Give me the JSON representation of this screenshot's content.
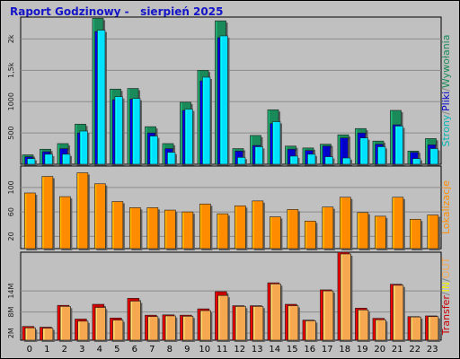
{
  "title": "Raport Godzinowy -   sierpień 2025",
  "chart_data": [
    {
      "type": "bar",
      "panel": "strony-pliki-wywolania",
      "legend": [
        {
          "label": "Strony",
          "color": "#00b4b4"
        },
        {
          "label": "Pliki",
          "color": "#0000c8"
        },
        {
          "label": "Wywołania",
          "color": "#1b8a5a"
        }
      ],
      "separator": "/",
      "yticks": [
        "500",
        "1000",
        "1,5k",
        "2k"
      ],
      "ytick_values": [
        500,
        1000,
        1500,
        2000
      ],
      "ylim": [
        0,
        2350
      ],
      "categories": [
        "0",
        "1",
        "2",
        "3",
        "4",
        "5",
        "6",
        "7",
        "8",
        "9",
        "10",
        "11",
        "12",
        "13",
        "14",
        "15",
        "16",
        "17",
        "18",
        "19",
        "20",
        "21",
        "22",
        "23"
      ],
      "series": [
        {
          "name": "Wywołania",
          "color": "#1b8a5a",
          "values": [
            150,
            240,
            330,
            640,
            2330,
            1200,
            1210,
            600,
            330,
            990,
            1500,
            2290,
            250,
            460,
            870,
            290,
            260,
            320,
            470,
            570,
            370,
            860,
            210,
            410
          ]
        },
        {
          "name": "Pliki",
          "color": "#0000c8",
          "values": [
            120,
            200,
            250,
            500,
            2120,
            1030,
            1040,
            500,
            250,
            860,
            1330,
            2020,
            210,
            300,
            650,
            240,
            220,
            290,
            420,
            500,
            320,
            630,
            190,
            310
          ]
        },
        {
          "name": "Strony",
          "color": "#00e0ff",
          "values": [
            90,
            160,
            160,
            530,
            2140,
            1080,
            1050,
            450,
            190,
            880,
            1390,
            2050,
            110,
            280,
            680,
            130,
            160,
            120,
            100,
            420,
            280,
            610,
            90,
            250
          ]
        }
      ]
    },
    {
      "type": "bar",
      "panel": "lokalizacje",
      "legend": [
        {
          "label": "Lokalizacje",
          "color": "#ff8c00"
        }
      ],
      "yticks": [
        "20",
        "60",
        "100"
      ],
      "ytick_values": [
        20,
        60,
        100
      ],
      "ylim": [
        0,
        135
      ],
      "categories": [
        "0",
        "1",
        "2",
        "3",
        "4",
        "5",
        "6",
        "7",
        "8",
        "9",
        "10",
        "11",
        "12",
        "13",
        "14",
        "15",
        "16",
        "17",
        "18",
        "19",
        "20",
        "21",
        "22",
        "23"
      ],
      "series": [
        {
          "name": "Lokalizacje",
          "color": "#ff8c00",
          "values": [
            91,
            118,
            85,
            124,
            106,
            77,
            67,
            67,
            63,
            60,
            73,
            57,
            70,
            78,
            52,
            64,
            45,
            68,
            84,
            59,
            53,
            84,
            48,
            55
          ]
        }
      ]
    },
    {
      "type": "bar",
      "panel": "transfer",
      "legend": [
        {
          "label": "Transfer",
          "color": "#c80000"
        },
        {
          "label": "IN",
          "color": "#f0f000"
        },
        {
          "label": "OUT",
          "color": "#f5a850"
        }
      ],
      "separator": "/",
      "yticks": [
        "2M",
        "8M",
        "14M"
      ],
      "ytick_values": [
        2,
        8,
        14
      ],
      "ylim": [
        0,
        25
      ],
      "categories": [
        "0",
        "1",
        "2",
        "3",
        "4",
        "5",
        "6",
        "7",
        "8",
        "9",
        "10",
        "11",
        "12",
        "13",
        "14",
        "15",
        "16",
        "17",
        "18",
        "19",
        "20",
        "21",
        "22",
        "23"
      ],
      "series": [
        {
          "name": "Transfer",
          "color": "#c80000",
          "values": [
            3.9,
            3.7,
            9.9,
            6.0,
            10.2,
            6.3,
            11.9,
            7.1,
            7.2,
            7.1,
            8.9,
            13.8,
            9.8,
            9.8,
            16.3,
            10.2,
            5.7,
            14.3,
            25.0,
            9.1,
            6.2,
            15.9,
            6.7,
            6.9
          ]
        },
        {
          "name": "OUT",
          "color": "#f5a850",
          "values": [
            3.5,
            3.4,
            9.6,
            5.4,
            9.3,
            5.7,
            11.1,
            6.7,
            6.9,
            6.8,
            8.4,
            12.7,
            9.6,
            9.6,
            16.0,
            9.8,
            5.5,
            14.0,
            24.5,
            8.6,
            5.8,
            15.6,
            6.6,
            6.7
          ]
        }
      ]
    }
  ]
}
